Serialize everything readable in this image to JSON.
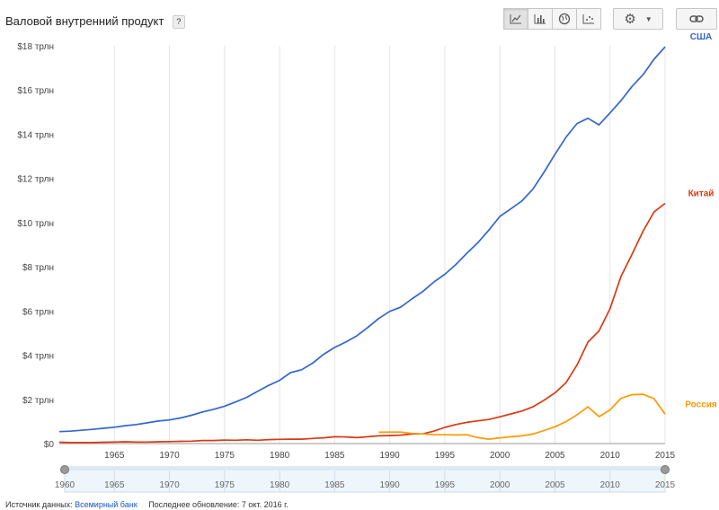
{
  "header": {
    "title": "Валовой внутренний продукт",
    "help_label": "?"
  },
  "footer": {
    "source_label": "Источник данных:",
    "source_link": "Всемирный банк",
    "updated": "Последнее обновление: 7 окт. 2016 г."
  },
  "toolbar": {
    "buttons": [
      "line-chart-icon",
      "bar-chart-icon",
      "globe-icon",
      "scatter-icon"
    ],
    "settings_icon": "gear-icon",
    "link_icon": "link-icon"
  },
  "chart_data": {
    "type": "line",
    "xlim": [
      1960,
      2015
    ],
    "ylim": [
      0,
      18
    ],
    "xticks": [
      1965,
      1970,
      1975,
      1980,
      1985,
      1990,
      1995,
      2000,
      2005,
      2010,
      2015
    ],
    "yticks": [
      0,
      2,
      4,
      6,
      8,
      10,
      12,
      14,
      16,
      18
    ],
    "ytick_labels": [
      "$0",
      "$2 трлн",
      "$4 трлн",
      "$6 трлн",
      "$8 трлн",
      "$10 трлн",
      "$12 трлн",
      "$14 трлн",
      "$16 трлн",
      "$18 трлн"
    ],
    "grid": "vertical",
    "series": [
      {
        "name": "США",
        "color": "#3366cc",
        "x": [
          1960,
          1961,
          1962,
          1963,
          1964,
          1965,
          1966,
          1967,
          1968,
          1969,
          1970,
          1971,
          1972,
          1973,
          1974,
          1975,
          1976,
          1977,
          1978,
          1979,
          1980,
          1981,
          1982,
          1983,
          1984,
          1985,
          1986,
          1987,
          1988,
          1989,
          1990,
          1991,
          1992,
          1993,
          1994,
          1995,
          1996,
          1997,
          1998,
          1999,
          2000,
          2001,
          2002,
          2003,
          2004,
          2005,
          2006,
          2007,
          2008,
          2009,
          2010,
          2011,
          2012,
          2013,
          2014,
          2015
        ],
        "y": [
          0.54,
          0.56,
          0.6,
          0.64,
          0.69,
          0.74,
          0.81,
          0.86,
          0.94,
          1.02,
          1.07,
          1.16,
          1.28,
          1.43,
          1.55,
          1.69,
          1.88,
          2.09,
          2.36,
          2.63,
          2.86,
          3.21,
          3.34,
          3.64,
          4.04,
          4.35,
          4.59,
          4.87,
          5.25,
          5.66,
          5.98,
          6.17,
          6.54,
          6.88,
          7.31,
          7.66,
          8.1,
          8.61,
          9.09,
          9.66,
          10.28,
          10.62,
          10.98,
          11.51,
          12.27,
          13.09,
          13.86,
          14.48,
          14.72,
          14.42,
          14.96,
          15.52,
          16.16,
          16.69,
          17.39,
          17.95
        ]
      },
      {
        "name": "Китай",
        "color": "#dc3912",
        "x": [
          1960,
          1961,
          1962,
          1963,
          1964,
          1965,
          1966,
          1967,
          1968,
          1969,
          1970,
          1971,
          1972,
          1973,
          1974,
          1975,
          1976,
          1977,
          1978,
          1979,
          1980,
          1981,
          1982,
          1983,
          1984,
          1985,
          1986,
          1987,
          1988,
          1989,
          1990,
          1991,
          1992,
          1993,
          1994,
          1995,
          1996,
          1997,
          1998,
          1999,
          2000,
          2001,
          2002,
          2003,
          2004,
          2005,
          2006,
          2007,
          2008,
          2009,
          2010,
          2011,
          2012,
          2013,
          2014,
          2015
        ],
        "y": [
          0.06,
          0.05,
          0.05,
          0.05,
          0.06,
          0.07,
          0.08,
          0.07,
          0.07,
          0.08,
          0.09,
          0.1,
          0.11,
          0.14,
          0.14,
          0.16,
          0.15,
          0.17,
          0.15,
          0.18,
          0.19,
          0.2,
          0.2,
          0.23,
          0.26,
          0.31,
          0.3,
          0.27,
          0.31,
          0.35,
          0.36,
          0.38,
          0.43,
          0.44,
          0.56,
          0.73,
          0.86,
          0.96,
          1.03,
          1.09,
          1.21,
          1.34,
          1.47,
          1.66,
          1.96,
          2.29,
          2.75,
          3.55,
          4.59,
          5.1,
          6.1,
          7.57,
          8.56,
          9.61,
          10.48,
          10.87
        ]
      },
      {
        "name": "Россия",
        "color": "#ff9900",
        "x": [
          1989,
          1990,
          1991,
          1992,
          1993,
          1994,
          1995,
          1996,
          1997,
          1998,
          1999,
          2000,
          2001,
          2002,
          2003,
          2004,
          2005,
          2006,
          2007,
          2008,
          2009,
          2010,
          2011,
          2012,
          2013,
          2014,
          2015
        ],
        "y": [
          0.51,
          0.52,
          0.52,
          0.46,
          0.44,
          0.4,
          0.4,
          0.39,
          0.4,
          0.27,
          0.2,
          0.26,
          0.31,
          0.35,
          0.43,
          0.59,
          0.76,
          0.99,
          1.3,
          1.66,
          1.22,
          1.52,
          2.05,
          2.21,
          2.23,
          2.03,
          1.33
        ]
      }
    ]
  }
}
